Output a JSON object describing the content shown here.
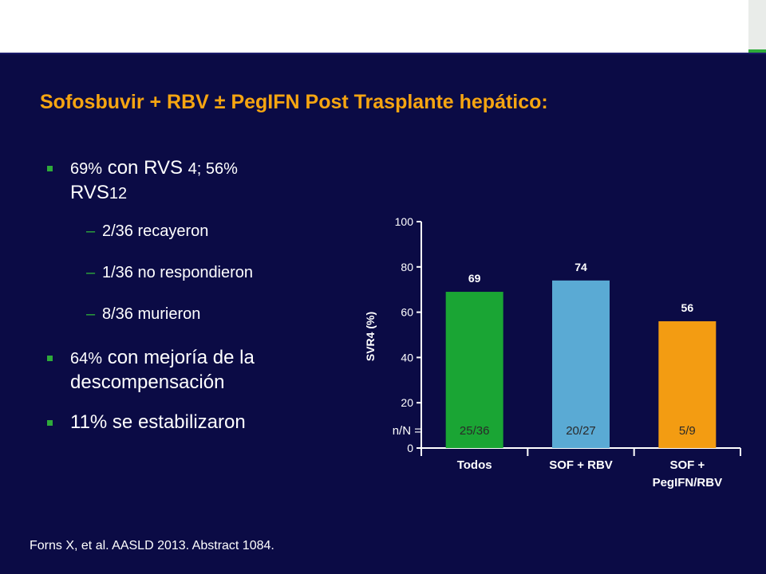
{
  "slide": {
    "title": "Sofosbuvir + RBV ± PegIFN Post Trasplante hepático:",
    "bullets": [
      {
        "a": "69%",
        "b": " con RVS ",
        "c": "4; 56%",
        "d": "RVS",
        "e": "12"
      },
      {
        "text": "2/36 recayeron"
      },
      {
        "text": "1/36 no respondieron"
      },
      {
        "text": "8/36 murieron"
      },
      {
        "a": "64%",
        "b": " con mejoría de la descompensación"
      },
      {
        "text": "11% se estabilizaron"
      }
    ],
    "citation": "Forns X, et al. AASLD 2013. Abstract 1084."
  },
  "chart_data": {
    "type": "bar",
    "ylabel": "SVR4 (%)",
    "ylim": [
      0,
      100
    ],
    "yticks": [
      0,
      20,
      40,
      60,
      80,
      100
    ],
    "categories": [
      "Todos",
      "SOF + RBV",
      "SOF + PegIFN/RBV"
    ],
    "category_lines": [
      [
        "Todos"
      ],
      [
        "SOF + RBV"
      ],
      [
        "SOF +",
        "PegIFN/RBV"
      ]
    ],
    "values": [
      69,
      74,
      56
    ],
    "colors": [
      "#1aa534",
      "#5aaad4",
      "#f39c12"
    ],
    "n_label": "n/N =",
    "n_values": [
      "25/36",
      "20/27",
      "5/9"
    ]
  }
}
